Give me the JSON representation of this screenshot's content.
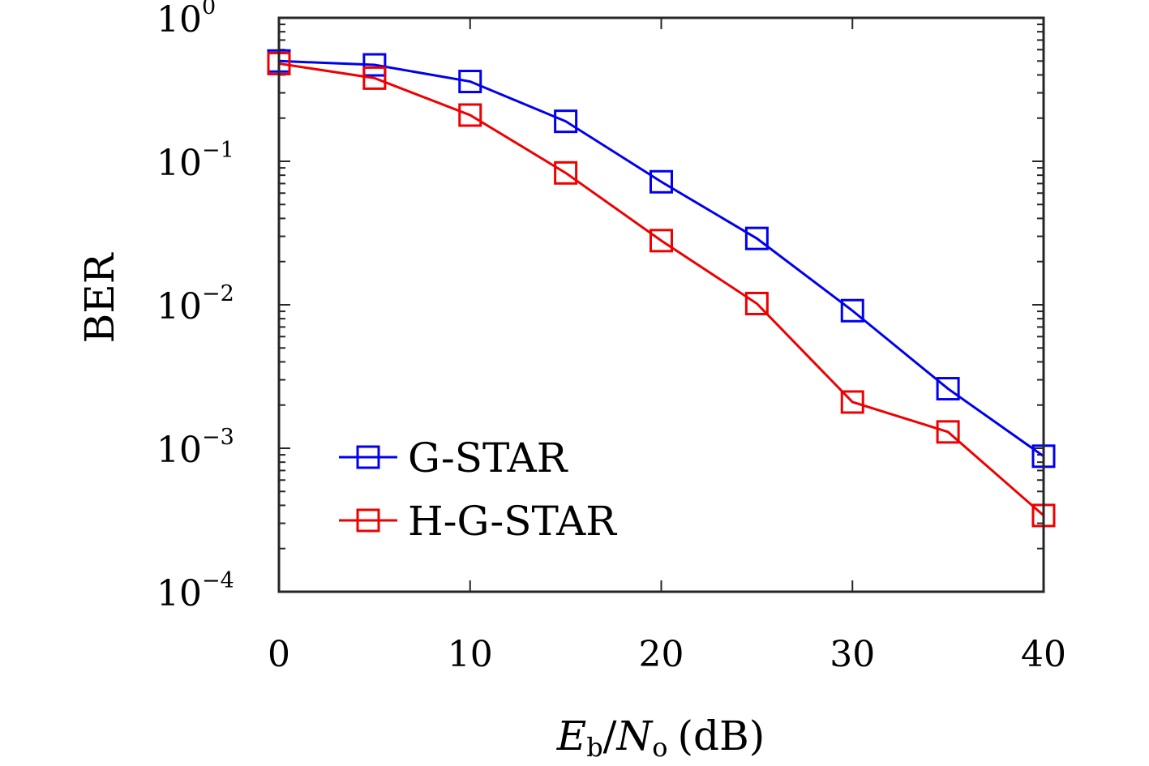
{
  "chart_data": {
    "type": "line",
    "x": [
      0,
      5,
      10,
      15,
      20,
      25,
      30,
      35,
      40
    ],
    "x_ticks": [
      "0",
      "10",
      "20",
      "30",
      "40"
    ],
    "x_tick_values": [
      0,
      10,
      20,
      30,
      40
    ],
    "xlim": [
      0,
      40
    ],
    "y_scale": "log",
    "ylim": [
      0.0001,
      1
    ],
    "y_ticks": [
      {
        "base": "10",
        "exp": "0",
        "value": 1
      },
      {
        "base": "10",
        "exp": "−1",
        "value": 0.1
      },
      {
        "base": "10",
        "exp": "−2",
        "value": 0.01
      },
      {
        "base": "10",
        "exp": "−3",
        "value": 0.001
      },
      {
        "base": "10",
        "exp": "−4",
        "value": 0.0001
      }
    ],
    "xlabel": {
      "E": "E",
      "b": "b",
      "slash": "/",
      "N": "N",
      "o": "o",
      "unit": "(dB)"
    },
    "ylabel": "BER",
    "grid": false,
    "legend_position": "bottom-left",
    "marker": "square",
    "series": [
      {
        "name": "G-STAR",
        "color": "#0000ee",
        "values": [
          0.5,
          0.47,
          0.36,
          0.19,
          0.072,
          0.029,
          0.0091,
          0.0026,
          0.00088
        ]
      },
      {
        "name": "H-G-STAR",
        "color": "#ee0000",
        "values": [
          0.48,
          0.38,
          0.21,
          0.083,
          0.028,
          0.0102,
          0.0021,
          0.0013,
          0.00034
        ]
      }
    ]
  }
}
